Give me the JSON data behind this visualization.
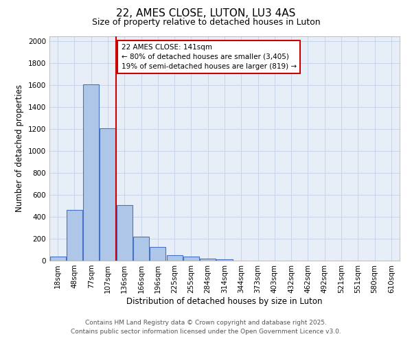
{
  "title": "22, AMES CLOSE, LUTON, LU3 4AS",
  "subtitle": "Size of property relative to detached houses in Luton",
  "xlabel": "Distribution of detached houses by size in Luton",
  "ylabel": "Number of detached properties",
  "bar_labels": [
    "18sqm",
    "48sqm",
    "77sqm",
    "107sqm",
    "136sqm",
    "166sqm",
    "196sqm",
    "225sqm",
    "255sqm",
    "284sqm",
    "314sqm",
    "344sqm",
    "373sqm",
    "403sqm",
    "432sqm",
    "462sqm",
    "492sqm",
    "521sqm",
    "551sqm",
    "580sqm",
    "610sqm"
  ],
  "bar_values": [
    35,
    465,
    1610,
    1210,
    510,
    220,
    125,
    48,
    35,
    20,
    10,
    0,
    0,
    0,
    0,
    0,
    0,
    0,
    0,
    0,
    0
  ],
  "bar_color": "#aec6e8",
  "bar_edge_color": "#4472c4",
  "vline_x_idx": 4,
  "vline_color": "#cc0000",
  "annotation_line1": "22 AMES CLOSE: 141sqm",
  "annotation_line2": "← 80% of detached houses are smaller (3,405)",
  "annotation_line3": "19% of semi-detached houses are larger (819) →",
  "annotation_box_color": "#cc0000",
  "annotation_box_facecolor": "white",
  "ylim": [
    0,
    2050
  ],
  "yticks": [
    0,
    200,
    400,
    600,
    800,
    1000,
    1200,
    1400,
    1600,
    1800,
    2000
  ],
  "grid_color": "#c8d4e8",
  "bg_color": "#e8eef8",
  "footer_line1": "Contains HM Land Registry data © Crown copyright and database right 2025.",
  "footer_line2": "Contains public sector information licensed under the Open Government Licence v3.0.",
  "title_fontsize": 11,
  "subtitle_fontsize": 9,
  "axis_label_fontsize": 8.5,
  "tick_fontsize": 7.5,
  "annotation_fontsize": 7.5,
  "footer_fontsize": 6.5
}
